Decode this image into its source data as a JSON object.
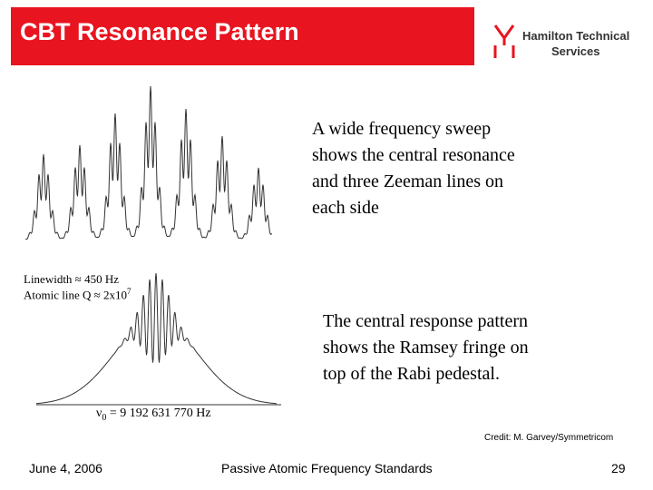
{
  "header": {
    "title": "CBT Resonance Pattern",
    "logo": {
      "line1": "Hamilton Technical",
      "line2": "Services"
    }
  },
  "sweep": {
    "lines": [
      "A wide frequency sweep",
      "shows the central resonance",
      "and three Zeeman lines on",
      "each side"
    ]
  },
  "annotations": {
    "linewidth": "Linewidth ≈ 450 Hz",
    "q": {
      "text": "Atomic line Q ≈ 2x10",
      "superscript": "7"
    },
    "frequency": {
      "symbol": "ν",
      "subscript": "0",
      "text": " = 9 192 631 770 Hz"
    }
  },
  "ramsey": {
    "lines": [
      "The central response pattern",
      "shows the Ramsey fringe on",
      "top of the Rabi pedestal."
    ]
  },
  "credit": "Credit: M. Garvey/Symmetricom",
  "footer": {
    "date": "June 4, 2006",
    "title": "Passive Atomic Frequency Standards",
    "page": "29"
  }
}
